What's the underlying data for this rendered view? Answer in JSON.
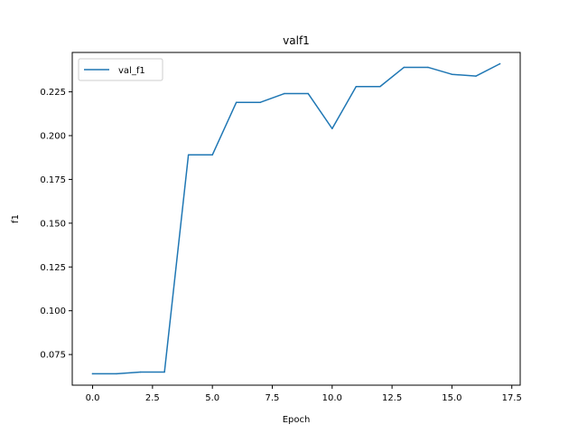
{
  "chart_data": {
    "type": "line",
    "title": "valf1",
    "xlabel": "Epoch",
    "ylabel": "f1",
    "xlim": [
      -0.85,
      17.85
    ],
    "ylim": [
      0.0575,
      0.2475
    ],
    "xticks": [
      0.0,
      2.5,
      5.0,
      7.5,
      10.0,
      12.5,
      15.0,
      17.5
    ],
    "xtick_labels": [
      "0.0",
      "2.5",
      "5.0",
      "7.5",
      "10.0",
      "12.5",
      "15.0",
      "17.5"
    ],
    "yticks": [
      0.075,
      0.1,
      0.125,
      0.15,
      0.175,
      0.2,
      0.225
    ],
    "ytick_labels": [
      "0.075",
      "0.100",
      "0.125",
      "0.150",
      "0.175",
      "0.200",
      "0.225"
    ],
    "grid": false,
    "legend": "upper-left",
    "series": [
      {
        "name": "val_f1",
        "color": "#1f77b4",
        "x": [
          0,
          1,
          2,
          3,
          4,
          5,
          6,
          7,
          8,
          9,
          10,
          11,
          12,
          13,
          14,
          15,
          16,
          17
        ],
        "y": [
          0.064,
          0.064,
          0.065,
          0.065,
          0.189,
          0.189,
          0.219,
          0.219,
          0.224,
          0.224,
          0.204,
          0.228,
          0.228,
          0.239,
          0.239,
          0.235,
          0.234,
          0.241
        ]
      }
    ]
  }
}
